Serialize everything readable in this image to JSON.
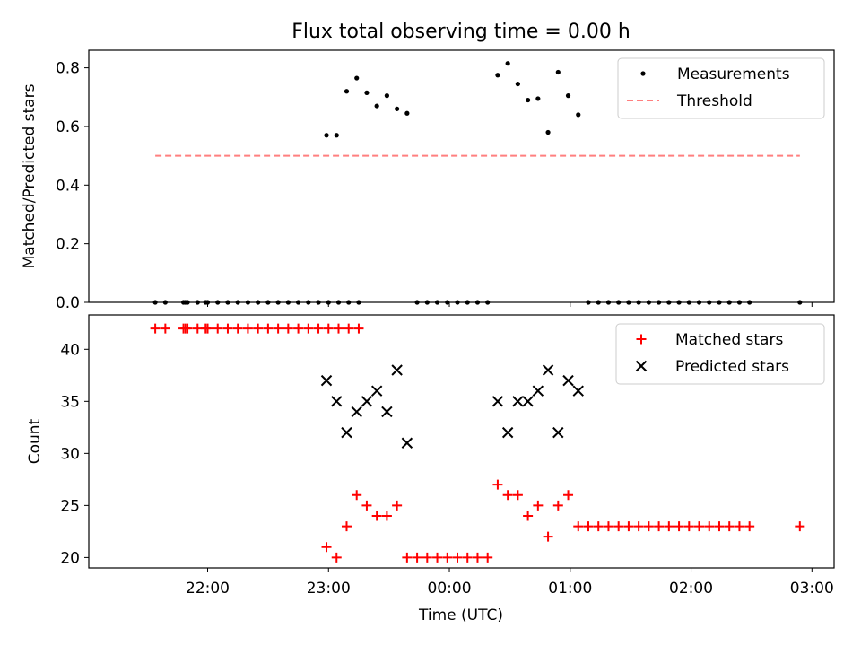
{
  "chart_data": [
    {
      "type": "scatter",
      "title": "Flux total observing time = 0.00 h",
      "ylabel": "Matched/Predicted stars",
      "xlabel": "",
      "ylim": [
        0,
        0.86
      ],
      "yticks": [
        0.0,
        0.2,
        0.4,
        0.6,
        0.8
      ],
      "ytick_labels": [
        "0.0",
        "0.2",
        "0.4",
        "0.6",
        "0.8"
      ],
      "legend_position": "top-right",
      "series": [
        {
          "name": "Measurements",
          "marker": "dot",
          "color": "#000000",
          "points": [
            [
              "21:34",
              0.0
            ],
            [
              "21:39",
              0.0
            ],
            [
              "21:48",
              0.0
            ],
            [
              "21:49",
              0.0
            ],
            [
              "21:50",
              0.0
            ],
            [
              "21:55",
              0.0
            ],
            [
              "21:59",
              0.0
            ],
            [
              "22:00",
              0.0
            ],
            [
              "22:05",
              0.0
            ],
            [
              "22:10",
              0.0
            ],
            [
              "22:15",
              0.0
            ],
            [
              "22:20",
              0.0
            ],
            [
              "22:25",
              0.0
            ],
            [
              "22:30",
              0.0
            ],
            [
              "22:35",
              0.0
            ],
            [
              "22:40",
              0.0
            ],
            [
              "22:45",
              0.0
            ],
            [
              "22:50",
              0.0
            ],
            [
              "22:55",
              0.0
            ],
            [
              "23:00",
              0.0
            ],
            [
              "23:05",
              0.0
            ],
            [
              "23:10",
              0.0
            ],
            [
              "23:15",
              0.0
            ],
            [
              "22:59",
              0.57
            ],
            [
              "23:04",
              0.57
            ],
            [
              "23:09",
              0.72
            ],
            [
              "23:14",
              0.765
            ],
            [
              "23:19",
              0.715
            ],
            [
              "23:24",
              0.67
            ],
            [
              "23:29",
              0.705
            ],
            [
              "23:34",
              0.66
            ],
            [
              "23:39",
              0.645
            ],
            [
              "23:44",
              0.0
            ],
            [
              "23:49",
              0.0
            ],
            [
              "23:54",
              0.0
            ],
            [
              "23:59",
              0.0
            ],
            [
              "00:04",
              0.0
            ],
            [
              "00:09",
              0.0
            ],
            [
              "00:14",
              0.0
            ],
            [
              "00:19",
              0.0
            ],
            [
              "00:24",
              0.775
            ],
            [
              "00:29",
              0.815
            ],
            [
              "00:34",
              0.745
            ],
            [
              "00:39",
              0.69
            ],
            [
              "00:44",
              0.695
            ],
            [
              "00:49",
              0.58
            ],
            [
              "00:54",
              0.785
            ],
            [
              "00:59",
              0.705
            ],
            [
              "01:04",
              0.64
            ],
            [
              "01:09",
              0.0
            ],
            [
              "01:14",
              0.0
            ],
            [
              "01:19",
              0.0
            ],
            [
              "01:24",
              0.0
            ],
            [
              "01:29",
              0.0
            ],
            [
              "01:34",
              0.0
            ],
            [
              "01:39",
              0.0
            ],
            [
              "01:44",
              0.0
            ],
            [
              "01:49",
              0.0
            ],
            [
              "01:54",
              0.0
            ],
            [
              "01:59",
              0.0
            ],
            [
              "02:04",
              0.0
            ],
            [
              "02:09",
              0.0
            ],
            [
              "02:14",
              0.0
            ],
            [
              "02:19",
              0.0
            ],
            [
              "02:24",
              0.0
            ],
            [
              "02:29",
              0.0
            ],
            [
              "02:54",
              0.0
            ]
          ]
        },
        {
          "name": "Threshold",
          "kind": "dashed-line",
          "color": "#ff7f7f",
          "y": 0.5,
          "x_range": [
            "21:34",
            "02:54"
          ]
        }
      ]
    },
    {
      "type": "scatter",
      "title": "",
      "ylabel": "Count",
      "xlabel": "Time (UTC)",
      "ylim": [
        19,
        43.3
      ],
      "yticks": [
        20,
        25,
        30,
        35,
        40
      ],
      "ytick_labels": [
        "20",
        "25",
        "30",
        "35",
        "40"
      ],
      "xticks": [
        "22:00",
        "23:00",
        "00:00",
        "01:00",
        "02:00",
        "03:00"
      ],
      "xlim": [
        "21:01",
        "03:11"
      ],
      "legend_position": "top-right",
      "series": [
        {
          "name": "Matched stars",
          "marker": "plus",
          "color": "#ff0000",
          "points": [
            [
              "21:34",
              42
            ],
            [
              "21:39",
              42
            ],
            [
              "21:48",
              42
            ],
            [
              "21:49",
              42
            ],
            [
              "21:50",
              42
            ],
            [
              "21:55",
              42
            ],
            [
              "21:59",
              42
            ],
            [
              "22:00",
              42
            ],
            [
              "22:05",
              42
            ],
            [
              "22:10",
              42
            ],
            [
              "22:15",
              42
            ],
            [
              "22:20",
              42
            ],
            [
              "22:25",
              42
            ],
            [
              "22:30",
              42
            ],
            [
              "22:35",
              42
            ],
            [
              "22:40",
              42
            ],
            [
              "22:45",
              42
            ],
            [
              "22:50",
              42
            ],
            [
              "22:55",
              42
            ],
            [
              "23:00",
              42
            ],
            [
              "23:05",
              42
            ],
            [
              "23:10",
              42
            ],
            [
              "23:15",
              42
            ],
            [
              "22:59",
              21
            ],
            [
              "23:04",
              20
            ],
            [
              "23:09",
              23
            ],
            [
              "23:14",
              26
            ],
            [
              "23:19",
              25
            ],
            [
              "23:24",
              24
            ],
            [
              "23:29",
              24
            ],
            [
              "23:34",
              25
            ],
            [
              "23:39",
              20
            ],
            [
              "23:44",
              20
            ],
            [
              "23:49",
              20
            ],
            [
              "23:54",
              20
            ],
            [
              "23:59",
              20
            ],
            [
              "00:04",
              20
            ],
            [
              "00:09",
              20
            ],
            [
              "00:14",
              20
            ],
            [
              "00:19",
              20
            ],
            [
              "00:24",
              27
            ],
            [
              "00:29",
              26
            ],
            [
              "00:34",
              26
            ],
            [
              "00:39",
              24
            ],
            [
              "00:44",
              25
            ],
            [
              "00:49",
              22
            ],
            [
              "00:54",
              25
            ],
            [
              "00:59",
              26
            ],
            [
              "01:04",
              23
            ],
            [
              "01:09",
              23
            ],
            [
              "01:14",
              23
            ],
            [
              "01:19",
              23
            ],
            [
              "01:24",
              23
            ],
            [
              "01:29",
              23
            ],
            [
              "01:34",
              23
            ],
            [
              "01:39",
              23
            ],
            [
              "01:44",
              23
            ],
            [
              "01:49",
              23
            ],
            [
              "01:54",
              23
            ],
            [
              "01:59",
              23
            ],
            [
              "02:04",
              23
            ],
            [
              "02:09",
              23
            ],
            [
              "02:14",
              23
            ],
            [
              "02:19",
              23
            ],
            [
              "02:24",
              23
            ],
            [
              "02:29",
              23
            ],
            [
              "02:54",
              23
            ]
          ]
        },
        {
          "name": "Predicted stars",
          "marker": "x",
          "color": "#000000",
          "points": [
            [
              "22:59",
              37
            ],
            [
              "23:04",
              35
            ],
            [
              "23:09",
              32
            ],
            [
              "23:14",
              34
            ],
            [
              "23:19",
              35
            ],
            [
              "23:24",
              36
            ],
            [
              "23:29",
              34
            ],
            [
              "23:34",
              38
            ],
            [
              "23:39",
              31
            ],
            [
              "00:24",
              35
            ],
            [
              "00:29",
              32
            ],
            [
              "00:34",
              35
            ],
            [
              "00:39",
              35
            ],
            [
              "00:44",
              36
            ],
            [
              "00:49",
              38
            ],
            [
              "00:54",
              32
            ],
            [
              "00:59",
              37
            ],
            [
              "01:04",
              36
            ]
          ]
        }
      ]
    }
  ]
}
